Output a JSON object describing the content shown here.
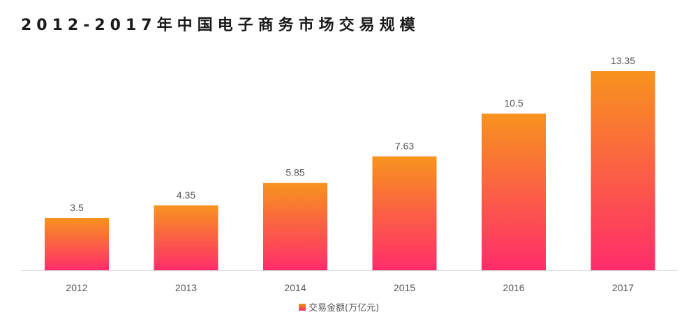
{
  "chart_data": {
    "type": "bar",
    "title": "2012-2017年中国电子商务市场交易规模",
    "categories": [
      "2012",
      "2013",
      "2014",
      "2015",
      "2016",
      "2017"
    ],
    "series": [
      {
        "name": "交易金额(万亿元)",
        "values": [
          3.5,
          4.35,
          5.85,
          7.63,
          10.5,
          13.35
        ],
        "value_labels": [
          "3.5",
          "4.35",
          "5.85",
          "7.63",
          "10.5",
          "13.35"
        ]
      }
    ],
    "xlabel": "",
    "ylabel": "",
    "ylim": [
      0,
      13.35
    ],
    "grid": false,
    "legend_position": "bottom-center",
    "colors": {
      "bar_top": "#f7931e",
      "bar_bottom": "#ff2d6b",
      "baseline": "#d9d9d9"
    }
  }
}
